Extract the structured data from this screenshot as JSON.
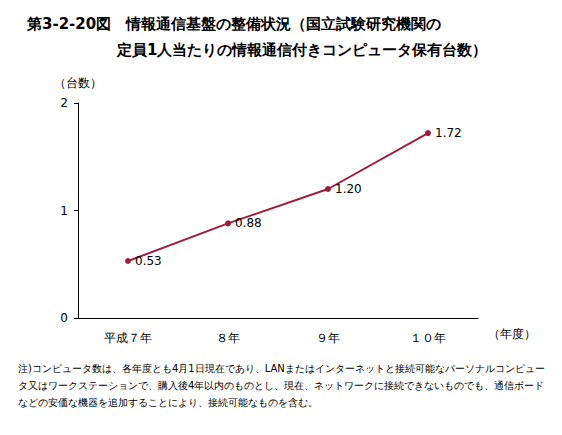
{
  "chart_data": {
    "type": "line",
    "title": "第3-2-20図　情報通信基盤の整備状況（国立試験研究機関の\n　　　　　　定員1人当たりの情報通信付きコンピュータ保有台数）",
    "x_label": "（年度）",
    "y_label": "（台数）",
    "categories": [
      "平成７年",
      "８年",
      "９年",
      "１０年"
    ],
    "values": [
      0.53,
      0.88,
      1.2,
      1.72
    ],
    "value_labels": [
      "0.53",
      "0.88",
      "1.20",
      "1.72"
    ],
    "color": "#a01c3c",
    "marker": "circle",
    "ylim": [
      0,
      2
    ],
    "yticks": [
      0,
      1,
      2
    ],
    "grid": false,
    "data_labels": true,
    "annotations": [
      "注)コンピュータ数は、各年度とも4月1日現在であり、LANまたはインターネットと接続可能なパーソナルコンピュータ又はワークステーションで、購入後4年以内のものとし、現在、ネットワークに接続できないものでも、通信ボードなどの安価な機器を追加することにより、接続可能なものを含む。"
    ]
  }
}
